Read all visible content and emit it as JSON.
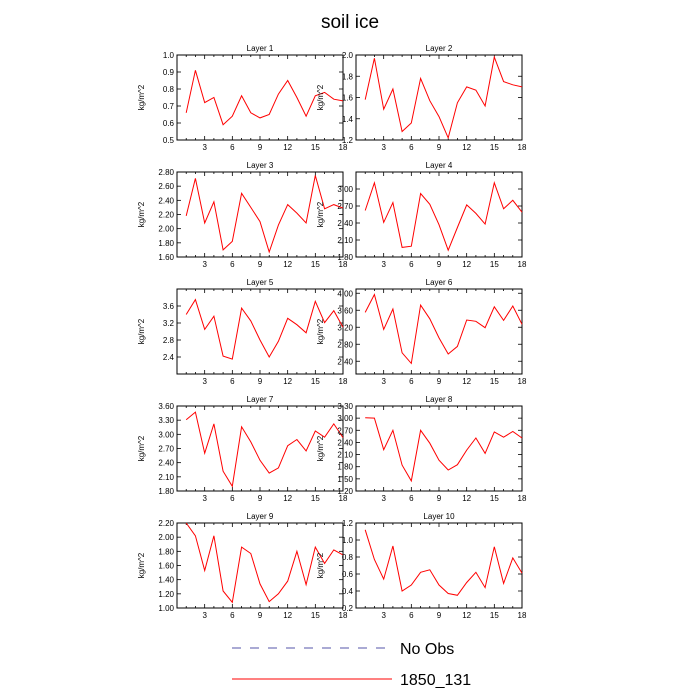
{
  "title": "soil ice",
  "legend": {
    "placement": "bottom-center",
    "entries": [
      {
        "label": "No Obs",
        "color": "#5555aa",
        "style": "dashed"
      },
      {
        "label": "1850_131",
        "color": "#ff0000",
        "style": "solid"
      }
    ]
  },
  "chart_data": [
    {
      "type": "line",
      "title": "Layer 1",
      "ylabel": "kg/m^2",
      "xlim": [
        0,
        18
      ],
      "ylim": [
        0.5,
        1.0
      ],
      "xticks": [
        "3",
        "6",
        "9",
        "12",
        "15",
        "18"
      ],
      "yticks": [
        "0.5",
        "0.6",
        "0.7",
        "0.8",
        "0.9",
        "1.0"
      ],
      "series": [
        {
          "color": "#ff0000",
          "x": [
            1,
            2,
            3,
            4,
            5,
            6,
            7,
            8,
            9,
            10,
            11,
            12,
            13,
            14,
            15,
            16,
            17,
            18
          ],
          "y": [
            0.66,
            0.91,
            0.72,
            0.75,
            0.59,
            0.64,
            0.76,
            0.66,
            0.63,
            0.65,
            0.77,
            0.85,
            0.75,
            0.64,
            0.76,
            0.78,
            0.74,
            0.73
          ]
        }
      ]
    },
    {
      "type": "line",
      "title": "Layer 2",
      "ylabel": "kg/m^2",
      "xlim": [
        0,
        18
      ],
      "ylim": [
        1.2,
        2.0
      ],
      "xticks": [
        "3",
        "6",
        "9",
        "12",
        "15",
        "18"
      ],
      "yticks": [
        "1.2",
        "1.4",
        "1.6",
        "1.8",
        "2.0"
      ],
      "series": [
        {
          "color": "#ff0000",
          "x": [
            1,
            2,
            3,
            4,
            5,
            6,
            7,
            8,
            9,
            10,
            11,
            12,
            13,
            14,
            15,
            16,
            17,
            18
          ],
          "y": [
            1.58,
            1.97,
            1.49,
            1.68,
            1.28,
            1.36,
            1.78,
            1.57,
            1.42,
            1.22,
            1.55,
            1.7,
            1.67,
            1.52,
            1.98,
            1.75,
            1.72,
            1.7
          ]
        }
      ]
    },
    {
      "type": "line",
      "title": "Layer 3",
      "ylabel": "kg/m^2",
      "xlim": [
        0,
        18
      ],
      "ylim": [
        1.6,
        2.8
      ],
      "xticks": [
        "3",
        "6",
        "9",
        "12",
        "15",
        "18"
      ],
      "yticks": [
        "1.60",
        "1.80",
        "2.00",
        "2.20",
        "2.40",
        "2.60",
        "2.80"
      ],
      "series": [
        {
          "color": "#ff0000",
          "x": [
            1,
            2,
            3,
            4,
            5,
            6,
            7,
            8,
            9,
            10,
            11,
            12,
            13,
            14,
            15,
            16,
            17,
            18
          ],
          "y": [
            2.18,
            2.71,
            2.08,
            2.38,
            1.7,
            1.82,
            2.5,
            2.3,
            2.1,
            1.67,
            2.05,
            2.34,
            2.22,
            2.08,
            2.75,
            2.28,
            2.34,
            2.29
          ]
        }
      ]
    },
    {
      "type": "line",
      "title": "Layer 4",
      "ylabel": "kg/m^2",
      "xlim": [
        0,
        18
      ],
      "ylim": [
        1.8,
        3.3
      ],
      "xticks": [
        "3",
        "6",
        "9",
        "12",
        "15",
        "18"
      ],
      "yticks": [
        "1.80",
        "2.10",
        "2.40",
        "2.70",
        "3.00"
      ],
      "series": [
        {
          "color": "#ff0000",
          "x": [
            1,
            2,
            3,
            4,
            5,
            6,
            7,
            8,
            9,
            10,
            11,
            12,
            13,
            14,
            15,
            16,
            17,
            18
          ],
          "y": [
            2.62,
            3.11,
            2.41,
            2.76,
            1.97,
            1.99,
            2.92,
            2.73,
            2.37,
            1.92,
            2.32,
            2.72,
            2.57,
            2.38,
            3.11,
            2.65,
            2.8,
            2.59
          ]
        }
      ]
    },
    {
      "type": "line",
      "title": "Layer 5",
      "ylabel": "kg/m^2",
      "xlim": [
        0,
        18
      ],
      "ylim": [
        2.0,
        4.0
      ],
      "xticks": [
        "3",
        "6",
        "9",
        "12",
        "15",
        "18"
      ],
      "yticks": [
        "2.4",
        "2.8",
        "3.2",
        "3.6"
      ],
      "series": [
        {
          "color": "#ff0000",
          "x": [
            1,
            2,
            3,
            4,
            5,
            6,
            7,
            8,
            9,
            10,
            11,
            12,
            13,
            14,
            15,
            16,
            17,
            18
          ],
          "y": [
            3.4,
            3.75,
            3.05,
            3.36,
            2.42,
            2.35,
            3.55,
            3.25,
            2.8,
            2.4,
            2.77,
            3.31,
            3.16,
            2.97,
            3.71,
            3.21,
            3.49,
            3.1
          ]
        }
      ]
    },
    {
      "type": "line",
      "title": "Layer 6",
      "ylabel": "kg/m^2",
      "xlim": [
        0,
        18
      ],
      "ylim": [
        2.1,
        4.1
      ],
      "xticks": [
        "3",
        "6",
        "9",
        "12",
        "15",
        "18"
      ],
      "yticks": [
        "2.40",
        "2.80",
        "3.20",
        "3.60",
        "4.00"
      ],
      "series": [
        {
          "color": "#ff0000",
          "x": [
            1,
            2,
            3,
            4,
            5,
            6,
            7,
            8,
            9,
            10,
            11,
            12,
            13,
            14,
            15,
            16,
            17,
            18
          ],
          "y": [
            3.55,
            3.97,
            3.15,
            3.63,
            2.6,
            2.35,
            3.72,
            3.4,
            2.95,
            2.57,
            2.75,
            3.37,
            3.34,
            3.19,
            3.68,
            3.36,
            3.7,
            3.27
          ]
        }
      ]
    },
    {
      "type": "line",
      "title": "Layer 7",
      "ylabel": "kg/m^2",
      "xlim": [
        0,
        18
      ],
      "ylim": [
        1.8,
        3.6
      ],
      "xticks": [
        "3",
        "6",
        "9",
        "12",
        "15",
        "18"
      ],
      "yticks": [
        "1.80",
        "2.10",
        "2.40",
        "2.70",
        "3.00",
        "3.30",
        "3.60"
      ],
      "series": [
        {
          "color": "#ff0000",
          "x": [
            1,
            2,
            3,
            4,
            5,
            6,
            7,
            8,
            9,
            10,
            11,
            12,
            13,
            14,
            15,
            16,
            17,
            18
          ],
          "y": [
            3.31,
            3.47,
            2.6,
            3.22,
            2.22,
            1.9,
            3.16,
            2.84,
            2.45,
            2.18,
            2.29,
            2.76,
            2.89,
            2.65,
            3.07,
            2.94,
            3.22,
            2.93
          ]
        }
      ]
    },
    {
      "type": "line",
      "title": "Layer 8",
      "ylabel": "kg/m^2",
      "xlim": [
        0,
        18
      ],
      "ylim": [
        1.2,
        3.3
      ],
      "xticks": [
        "3",
        "6",
        "9",
        "12",
        "15",
        "18"
      ],
      "yticks": [
        "1.20",
        "1.50",
        "1.80",
        "2.10",
        "2.40",
        "2.70",
        "3.00",
        "3.30"
      ],
      "series": [
        {
          "color": "#ff0000",
          "x": [
            1,
            2,
            3,
            4,
            5,
            6,
            7,
            8,
            9,
            10,
            11,
            12,
            13,
            14,
            15,
            16,
            17,
            18
          ],
          "y": [
            3.01,
            3.0,
            2.22,
            2.7,
            1.84,
            1.45,
            2.7,
            2.38,
            1.96,
            1.72,
            1.85,
            2.21,
            2.51,
            2.13,
            2.66,
            2.53,
            2.67,
            2.51
          ]
        }
      ]
    },
    {
      "type": "line",
      "title": "Layer 9",
      "ylabel": "kg/m^2",
      "xlim": [
        0,
        18
      ],
      "ylim": [
        1.0,
        2.2
      ],
      "xticks": [
        "3",
        "6",
        "9",
        "12",
        "15",
        "18"
      ],
      "yticks": [
        "1.00",
        "1.20",
        "1.40",
        "1.60",
        "1.80",
        "2.00",
        "2.20"
      ],
      "series": [
        {
          "color": "#ff0000",
          "x": [
            1,
            2,
            3,
            4,
            5,
            6,
            7,
            8,
            9,
            10,
            11,
            12,
            13,
            14,
            15,
            16,
            17,
            18
          ],
          "y": [
            2.2,
            2.02,
            1.53,
            2.02,
            1.24,
            1.08,
            1.86,
            1.77,
            1.34,
            1.09,
            1.2,
            1.38,
            1.8,
            1.33,
            1.86,
            1.63,
            1.82,
            1.75
          ]
        }
      ]
    },
    {
      "type": "line",
      "title": "Layer 10",
      "ylabel": "kg/m^2",
      "xlim": [
        0,
        18
      ],
      "ylim": [
        0.2,
        1.2
      ],
      "xticks": [
        "3",
        "6",
        "9",
        "12",
        "15",
        "18"
      ],
      "yticks": [
        "0.2",
        "0.4",
        "0.6",
        "0.8",
        "1.0",
        "1.2"
      ],
      "series": [
        {
          "color": "#ff0000",
          "x": [
            1,
            2,
            3,
            4,
            5,
            6,
            7,
            8,
            9,
            10,
            11,
            12,
            13,
            14,
            15,
            16,
            17,
            18
          ],
          "y": [
            1.12,
            0.77,
            0.54,
            0.93,
            0.4,
            0.47,
            0.62,
            0.65,
            0.47,
            0.37,
            0.35,
            0.5,
            0.62,
            0.44,
            0.92,
            0.49,
            0.79,
            0.61
          ]
        }
      ]
    }
  ]
}
